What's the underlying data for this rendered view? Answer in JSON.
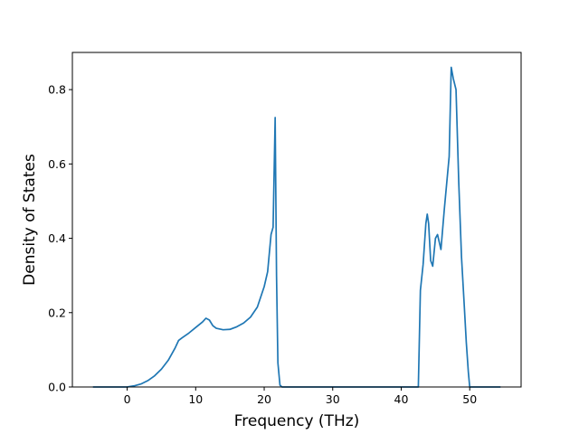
{
  "chart_data": {
    "type": "line",
    "title": "",
    "xlabel": "Frequency (THz)",
    "ylabel": "Density of States",
    "xlim": [
      -8.0,
      57.5
    ],
    "ylim": [
      0.0,
      0.9
    ],
    "xticks": [
      0,
      10,
      20,
      30,
      40,
      50
    ],
    "yticks": [
      0.0,
      0.2,
      0.4,
      0.6,
      0.8
    ],
    "xtick_labels": [
      "0",
      "10",
      "20",
      "30",
      "40",
      "50"
    ],
    "ytick_labels": [
      "0.0",
      "0.2",
      "0.4",
      "0.6",
      "0.8"
    ],
    "grid": false,
    "legend": false,
    "series": [
      {
        "color": "#1f77b4",
        "x": [
          -5.0,
          0.0,
          1.0,
          2.0,
          3.0,
          4.0,
          5.0,
          6.0,
          7.0,
          7.5,
          8.0,
          9.0,
          10.0,
          11.0,
          11.5,
          12.0,
          12.5,
          13.0,
          14.0,
          15.0,
          16.0,
          17.0,
          18.0,
          19.0,
          20.0,
          20.5,
          21.0,
          21.3,
          21.6,
          21.8,
          22.0,
          22.3,
          22.6,
          23.0,
          30.0,
          40.0,
          42.0,
          42.5,
          42.8,
          43.2,
          43.6,
          43.8,
          44.0,
          44.3,
          44.6,
          45.0,
          45.3,
          45.8,
          46.3,
          46.8,
          47.0,
          47.3,
          47.6,
          48.0,
          48.4,
          48.8,
          49.2,
          49.5,
          49.8,
          50.0,
          54.5
        ],
        "y": [
          0.0,
          0.0,
          0.003,
          0.008,
          0.017,
          0.03,
          0.048,
          0.072,
          0.105,
          0.125,
          0.132,
          0.145,
          0.16,
          0.175,
          0.185,
          0.18,
          0.165,
          0.158,
          0.154,
          0.155,
          0.162,
          0.172,
          0.188,
          0.215,
          0.27,
          0.31,
          0.41,
          0.43,
          0.725,
          0.3,
          0.065,
          0.005,
          0.0,
          0.0,
          0.0,
          0.0,
          0.0,
          0.0,
          0.26,
          0.33,
          0.44,
          0.465,
          0.44,
          0.34,
          0.325,
          0.4,
          0.41,
          0.37,
          0.48,
          0.58,
          0.62,
          0.86,
          0.83,
          0.8,
          0.55,
          0.35,
          0.22,
          0.12,
          0.04,
          0.0,
          0.0
        ]
      }
    ]
  }
}
